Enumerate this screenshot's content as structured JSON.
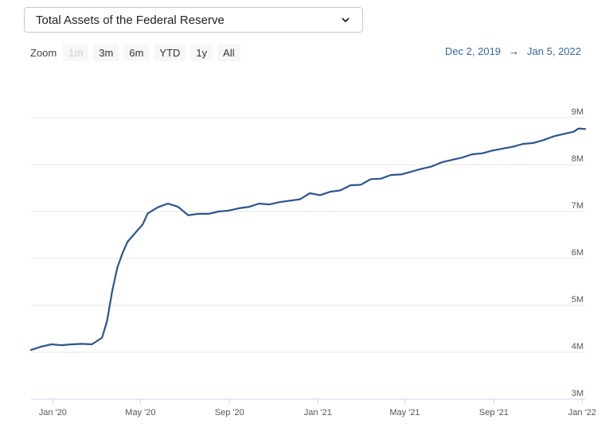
{
  "selector": {
    "value": "Total Assets of the Federal Reserve"
  },
  "zoom": {
    "label": "Zoom",
    "buttons": [
      {
        "label": "1m",
        "disabled": true
      },
      {
        "label": "3m",
        "disabled": false
      },
      {
        "label": "6m",
        "disabled": false
      },
      {
        "label": "YTD",
        "disabled": false
      },
      {
        "label": "1y",
        "disabled": false
      },
      {
        "label": "All",
        "disabled": false
      }
    ]
  },
  "range": {
    "from": "Dec 2, 2019",
    "arrow": "→",
    "to": "Jan 5, 2022"
  },
  "colors": {
    "line": "#2a5590",
    "grid": "#e6e6e6",
    "range_text": "#3366aa"
  },
  "chart_data": {
    "type": "line",
    "title": "",
    "xlabel": "",
    "ylabel": "",
    "ylim": [
      3000000,
      9000000
    ],
    "grid": true,
    "y_tick_labels": [
      "3M",
      "4M",
      "5M",
      "6M",
      "7M",
      "8M",
      "9M"
    ],
    "y_tick_values": [
      3000000,
      4000000,
      5000000,
      6000000,
      7000000,
      8000000,
      9000000
    ],
    "x_tick_labels": [
      "Jan '20",
      "May '20",
      "Sep '20",
      "Jan '21",
      "May '21",
      "Sep '21",
      "Jan '22"
    ],
    "x_tick_dates": [
      "2020-01-01",
      "2020-05-01",
      "2020-09-01",
      "2021-01-01",
      "2021-05-01",
      "2021-09-01",
      "2022-01-01"
    ],
    "series": [
      {
        "x": [
          "2019-12-02",
          "2019-12-16",
          "2019-12-30",
          "2020-01-13",
          "2020-01-27",
          "2020-02-10",
          "2020-02-24",
          "2020-03-09",
          "2020-03-16",
          "2020-03-23",
          "2020-03-30",
          "2020-04-06",
          "2020-04-13",
          "2020-04-27",
          "2020-05-04",
          "2020-05-11",
          "2020-05-25",
          "2020-06-08",
          "2020-06-22",
          "2020-07-06",
          "2020-07-20",
          "2020-08-03",
          "2020-08-17",
          "2020-08-31",
          "2020-09-14",
          "2020-09-28",
          "2020-10-12",
          "2020-10-26",
          "2020-11-09",
          "2020-11-23",
          "2020-12-07",
          "2020-12-21",
          "2021-01-04",
          "2021-01-18",
          "2021-02-01",
          "2021-02-15",
          "2021-03-01",
          "2021-03-15",
          "2021-03-29",
          "2021-04-12",
          "2021-04-26",
          "2021-05-10",
          "2021-05-24",
          "2021-06-07",
          "2021-06-21",
          "2021-07-05",
          "2021-07-19",
          "2021-08-02",
          "2021-08-16",
          "2021-08-30",
          "2021-09-13",
          "2021-09-27",
          "2021-10-11",
          "2021-10-25",
          "2021-11-08",
          "2021-11-22",
          "2021-12-06",
          "2021-12-20",
          "2021-12-27",
          "2022-01-05"
        ],
        "y": [
          4050000,
          4120000,
          4170000,
          4150000,
          4170000,
          4180000,
          4170000,
          4310000,
          4670000,
          5300000,
          5800000,
          6100000,
          6350000,
          6600000,
          6720000,
          6960000,
          7090000,
          7170000,
          7100000,
          6920000,
          6950000,
          6950000,
          7000000,
          7020000,
          7070000,
          7100000,
          7170000,
          7150000,
          7200000,
          7230000,
          7260000,
          7390000,
          7350000,
          7420000,
          7450000,
          7560000,
          7570000,
          7690000,
          7700000,
          7780000,
          7790000,
          7850000,
          7910000,
          7960000,
          8050000,
          8100000,
          8150000,
          8220000,
          8240000,
          8300000,
          8340000,
          8380000,
          8440000,
          8460000,
          8520000,
          8600000,
          8650000,
          8700000,
          8770000,
          8760000
        ]
      }
    ]
  }
}
